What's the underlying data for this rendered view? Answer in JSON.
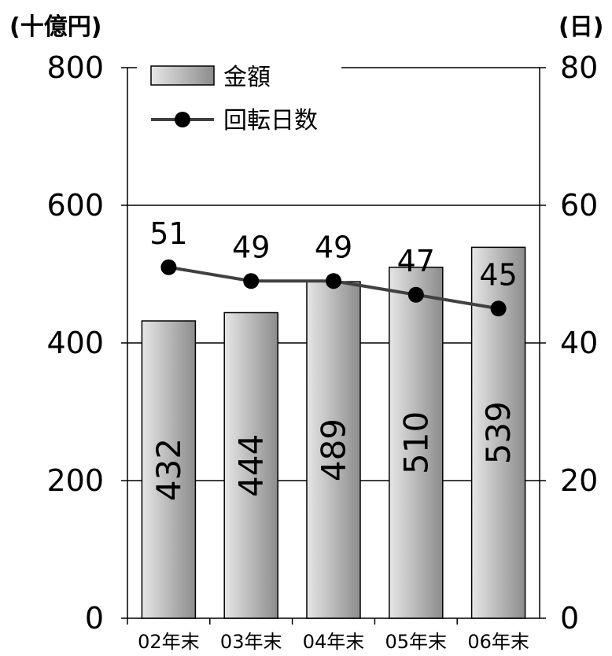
{
  "chart_data": {
    "type": "bar",
    "categories": [
      "02年末",
      "03年末",
      "04年末",
      "05年末",
      "06年末"
    ],
    "series": [
      {
        "name": "金額",
        "type": "bar",
        "axis": "left",
        "values": [
          432,
          444,
          489,
          510,
          539
        ]
      },
      {
        "name": "回転日数",
        "type": "line",
        "axis": "right",
        "values": [
          51,
          49,
          49,
          47,
          45
        ]
      }
    ],
    "y_left": {
      "unit": "(十億円)",
      "range": [
        0,
        800
      ],
      "ticks": [
        "0",
        "200",
        "400",
        "600",
        "800"
      ]
    },
    "y_right": {
      "unit": "(日)",
      "range": [
        0,
        80
      ],
      "ticks": [
        "0",
        "20",
        "40",
        "60",
        "80"
      ]
    },
    "grid": true,
    "legend": "top-left",
    "colors": {
      "bar_light": "#e6e6e6",
      "bar_dark": "#8c8c8c",
      "line": "#404040",
      "marker": "#000000"
    }
  }
}
